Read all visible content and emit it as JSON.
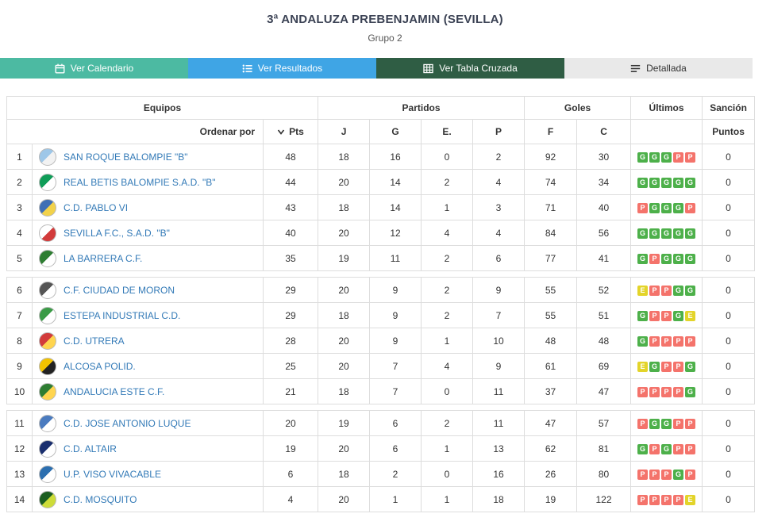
{
  "header": {
    "title": "3ª ANDALUZA PREBENJAMIN (SEVILLA)",
    "subtitle": "Grupo 2"
  },
  "tabs": [
    {
      "id": "ver-calendario",
      "label": "Ver Calendario",
      "icon": "calendar-icon",
      "bg": "#4cbaa2",
      "fg": "#ffffff"
    },
    {
      "id": "ver-resultados",
      "label": "Ver Resultados",
      "icon": "list-icon",
      "bg": "#3fa5e5",
      "fg": "#ffffff"
    },
    {
      "id": "ver-tabla-cruzada",
      "label": "Ver Tabla Cruzada",
      "icon": "table-icon",
      "bg": "#2f5d44",
      "fg": "#ffffff"
    },
    {
      "id": "detallada",
      "label": "Detallada",
      "icon": "detail-icon",
      "bg": "#e9e9e9",
      "fg": "#333333"
    }
  ],
  "table": {
    "group_headers": {
      "equipos": "Equipos",
      "partidos": "Partidos",
      "goles": "Goles",
      "ultimos": "Últimos",
      "sancion": "Sanción"
    },
    "sub_headers": {
      "ordenar": "Ordenar por",
      "pts": "Pts",
      "j": "J",
      "g": "G",
      "e": "E.",
      "p": "P",
      "f": "F",
      "c": "C",
      "puntos": "Puntos"
    },
    "result_colors": {
      "G": "#4db04a",
      "P": "#f4736b",
      "E": "#e3d42a"
    },
    "groups": [
      {
        "rows": [
          {
            "pos": "1",
            "team": "SAN ROQUE BALOMPIE \"B\"",
            "logo_colors": [
              "#9ec7e8",
              "#f2f2f2"
            ],
            "pts": "48",
            "j": "18",
            "g": "16",
            "e": "0",
            "p": "2",
            "f": "92",
            "c": "30",
            "last5": [
              "G",
              "G",
              "G",
              "P",
              "P"
            ],
            "sancion": "0"
          },
          {
            "pos": "2",
            "team": "REAL BETIS BALOMPIE S.A.D. \"B\"",
            "logo_colors": [
              "#0f9d58",
              "#ffffff"
            ],
            "pts": "44",
            "j": "20",
            "g": "14",
            "e": "2",
            "p": "4",
            "f": "74",
            "c": "34",
            "last5": [
              "G",
              "G",
              "G",
              "G",
              "G"
            ],
            "sancion": "0"
          },
          {
            "pos": "3",
            "team": "C.D. PABLO VI",
            "logo_colors": [
              "#3f6fb5",
              "#f2d24b"
            ],
            "pts": "43",
            "j": "18",
            "g": "14",
            "e": "1",
            "p": "3",
            "f": "71",
            "c": "40",
            "last5": [
              "P",
              "G",
              "G",
              "G",
              "P"
            ],
            "sancion": "0"
          },
          {
            "pos": "4",
            "team": "SEVILLA F.C., S.A.D. \"B\"",
            "logo_colors": [
              "#ffffff",
              "#d23b3b"
            ],
            "pts": "40",
            "j": "20",
            "g": "12",
            "e": "4",
            "p": "4",
            "f": "84",
            "c": "56",
            "last5": [
              "G",
              "G",
              "G",
              "G",
              "G"
            ],
            "sancion": "0"
          },
          {
            "pos": "5",
            "team": "LA BARRERA C.F.",
            "logo_colors": [
              "#2e7d32",
              "#ffffff"
            ],
            "pts": "35",
            "j": "19",
            "g": "11",
            "e": "2",
            "p": "6",
            "f": "77",
            "c": "41",
            "last5": [
              "G",
              "P",
              "G",
              "G",
              "G"
            ],
            "sancion": "0"
          }
        ]
      },
      {
        "rows": [
          {
            "pos": "6",
            "team": "C.F. CIUDAD DE MORON",
            "logo_colors": [
              "#555555",
              "#ffffff"
            ],
            "pts": "29",
            "j": "20",
            "g": "9",
            "e": "2",
            "p": "9",
            "f": "55",
            "c": "52",
            "last5": [
              "E",
              "P",
              "P",
              "G",
              "G"
            ],
            "sancion": "0"
          },
          {
            "pos": "7",
            "team": "ESTEPA INDUSTRIAL C.D.",
            "logo_colors": [
              "#3a9b46",
              "#ffffff"
            ],
            "pts": "29",
            "j": "18",
            "g": "9",
            "e": "2",
            "p": "7",
            "f": "55",
            "c": "51",
            "last5": [
              "G",
              "P",
              "P",
              "G",
              "E"
            ],
            "sancion": "0"
          },
          {
            "pos": "8",
            "team": "C.D. UTRERA",
            "logo_colors": [
              "#d23b3b",
              "#ffd54f"
            ],
            "pts": "28",
            "j": "20",
            "g": "9",
            "e": "1",
            "p": "10",
            "f": "48",
            "c": "48",
            "last5": [
              "G",
              "P",
              "P",
              "P",
              "P"
            ],
            "sancion": "0"
          },
          {
            "pos": "9",
            "team": "ALCOSA POLID.",
            "logo_colors": [
              "#f2c200",
              "#222222"
            ],
            "pts": "25",
            "j": "20",
            "g": "7",
            "e": "4",
            "p": "9",
            "f": "61",
            "c": "69",
            "last5": [
              "E",
              "G",
              "P",
              "P",
              "G"
            ],
            "sancion": "0"
          },
          {
            "pos": "10",
            "team": "ANDALUCIA ESTE C.F.",
            "logo_colors": [
              "#2e7d32",
              "#ffd54f"
            ],
            "pts": "21",
            "j": "18",
            "g": "7",
            "e": "0",
            "p": "11",
            "f": "37",
            "c": "47",
            "last5": [
              "P",
              "P",
              "P",
              "P",
              "G"
            ],
            "sancion": "0"
          }
        ]
      },
      {
        "rows": [
          {
            "pos": "11",
            "team": "C.D. JOSE ANTONIO LUQUE",
            "logo_colors": [
              "#4a7bbf",
              "#ffffff"
            ],
            "pts": "20",
            "j": "19",
            "g": "6",
            "e": "2",
            "p": "11",
            "f": "47",
            "c": "57",
            "last5": [
              "P",
              "G",
              "G",
              "P",
              "P"
            ],
            "sancion": "0"
          },
          {
            "pos": "12",
            "team": "C.D. ALTAIR",
            "logo_colors": [
              "#1a2f6e",
              "#ffffff"
            ],
            "pts": "19",
            "j": "20",
            "g": "6",
            "e": "1",
            "p": "13",
            "f": "62",
            "c": "81",
            "last5": [
              "G",
              "P",
              "G",
              "P",
              "P"
            ],
            "sancion": "0"
          },
          {
            "pos": "13",
            "team": "U.P. VISO VIVACABLE",
            "logo_colors": [
              "#2c6fb0",
              "#ffffff"
            ],
            "pts": "6",
            "j": "18",
            "g": "2",
            "e": "0",
            "p": "16",
            "f": "26",
            "c": "80",
            "last5": [
              "P",
              "P",
              "P",
              "G",
              "P"
            ],
            "sancion": "0"
          },
          {
            "pos": "14",
            "team": "C.D. MOSQUITO",
            "logo_colors": [
              "#1b5e20",
              "#cddc39"
            ],
            "pts": "4",
            "j": "20",
            "g": "1",
            "e": "1",
            "p": "18",
            "f": "19",
            "c": "122",
            "last5": [
              "P",
              "P",
              "P",
              "P",
              "E"
            ],
            "sancion": "0"
          }
        ]
      }
    ]
  }
}
